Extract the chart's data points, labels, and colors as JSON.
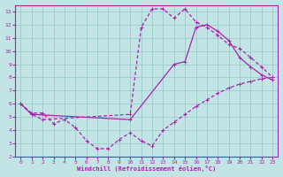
{
  "xlabel": "Windchill (Refroidissement éolien,°C)",
  "xlim": [
    -0.5,
    23.5
  ],
  "ylim": [
    2,
    13.5
  ],
  "xticks": [
    0,
    1,
    2,
    3,
    4,
    5,
    6,
    7,
    8,
    9,
    10,
    11,
    12,
    13,
    14,
    15,
    16,
    17,
    18,
    19,
    20,
    21,
    22,
    23
  ],
  "yticks": [
    2,
    3,
    4,
    5,
    6,
    7,
    8,
    9,
    10,
    11,
    12,
    13
  ],
  "bg_color": "#c2e4e4",
  "line_color": "#aa22aa",
  "grid_color": "#99cccc",
  "curve1_x": [
    0,
    1,
    2,
    3,
    4,
    5,
    6,
    7,
    8,
    9,
    10,
    11,
    12,
    13,
    14,
    15,
    16,
    17,
    18,
    19,
    20,
    21,
    22,
    23
  ],
  "curve1_y": [
    6.0,
    5.3,
    5.3,
    4.5,
    4.8,
    4.2,
    3.2,
    2.6,
    2.6,
    3.3,
    3.8,
    3.2,
    2.8,
    4.0,
    4.6,
    5.2,
    5.8,
    6.3,
    6.8,
    7.2,
    7.5,
    7.7,
    7.9,
    8.0
  ],
  "curve2_x": [
    0,
    1,
    2,
    10,
    11,
    12,
    13,
    14,
    15,
    16,
    17,
    18,
    19,
    20,
    21,
    22,
    23
  ],
  "curve2_y": [
    6.0,
    5.2,
    4.8,
    5.2,
    11.8,
    13.2,
    13.2,
    12.5,
    13.2,
    12.2,
    11.8,
    11.2,
    10.5,
    10.2,
    9.5,
    8.8,
    8.0
  ],
  "curve3_x": [
    0,
    1,
    10,
    14,
    15,
    16,
    17,
    18,
    19,
    20,
    21,
    22,
    23
  ],
  "curve3_y": [
    6.0,
    5.2,
    4.8,
    9.0,
    9.2,
    11.8,
    12.0,
    11.5,
    10.8,
    9.5,
    8.8,
    8.2,
    7.8
  ]
}
